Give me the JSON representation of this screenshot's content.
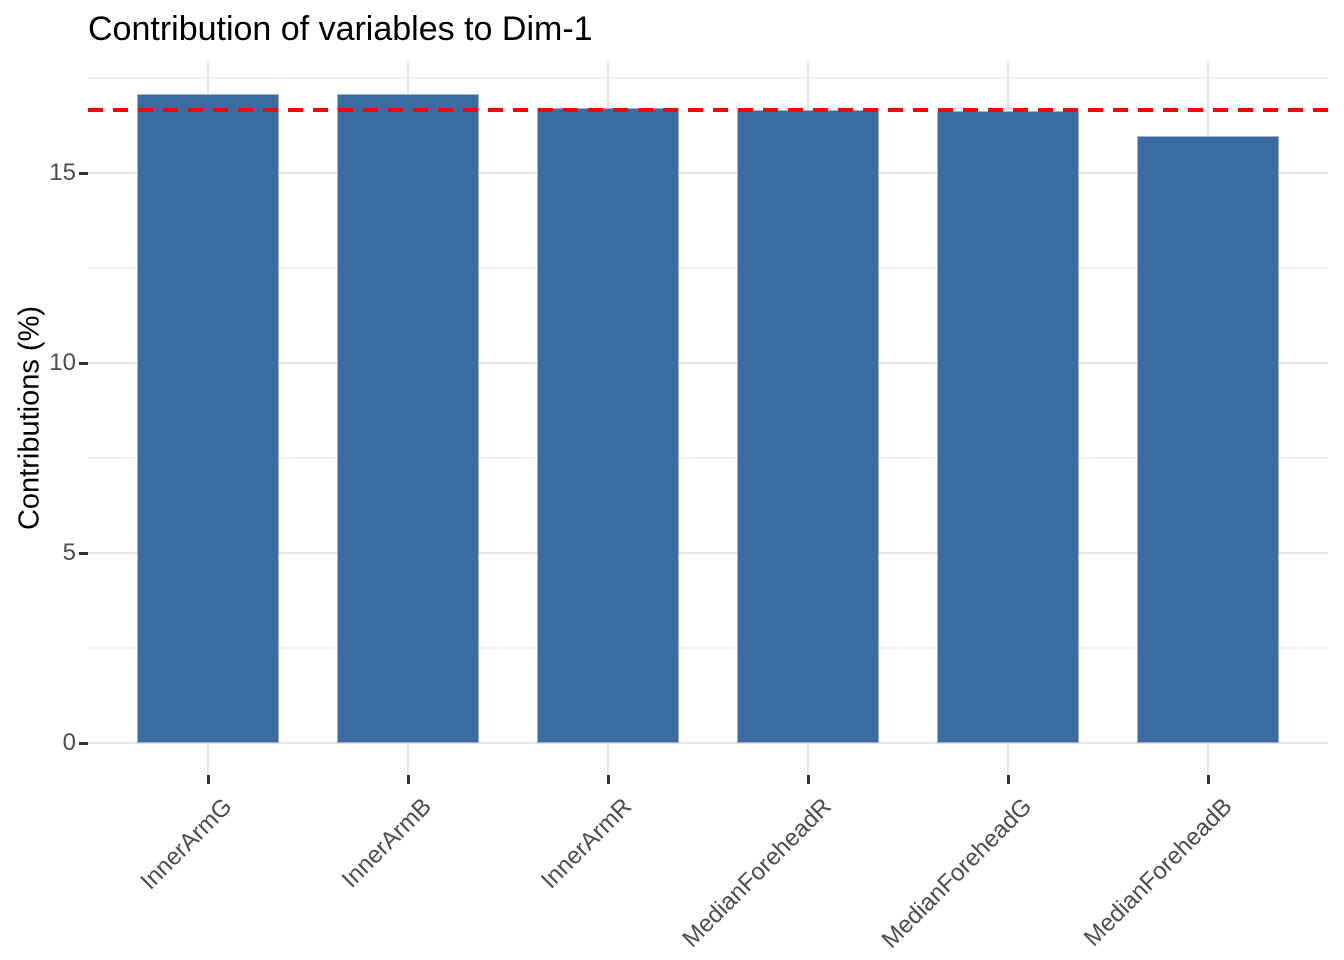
{
  "chart_data": {
    "type": "bar",
    "title": "Contribution of variables to Dim-1",
    "xlabel": "",
    "ylabel": "Contributions (%)",
    "categories": [
      "InnerArmG",
      "InnerArmB",
      "InnerArmR",
      "MedianForeheadR",
      "MedianForeheadG",
      "MedianForeheadB"
    ],
    "values": [
      17.09,
      17.09,
      16.72,
      16.66,
      16.63,
      15.98
    ],
    "bar_color": "#3a6ca2",
    "reference_line": {
      "value": 16.67,
      "color": "#ff0000",
      "style": "dashed"
    },
    "y_ticks": [
      0,
      5,
      10,
      15
    ],
    "ylim": [
      0,
      18
    ],
    "grid": true,
    "legend": "none",
    "x_label_angle": 45
  }
}
